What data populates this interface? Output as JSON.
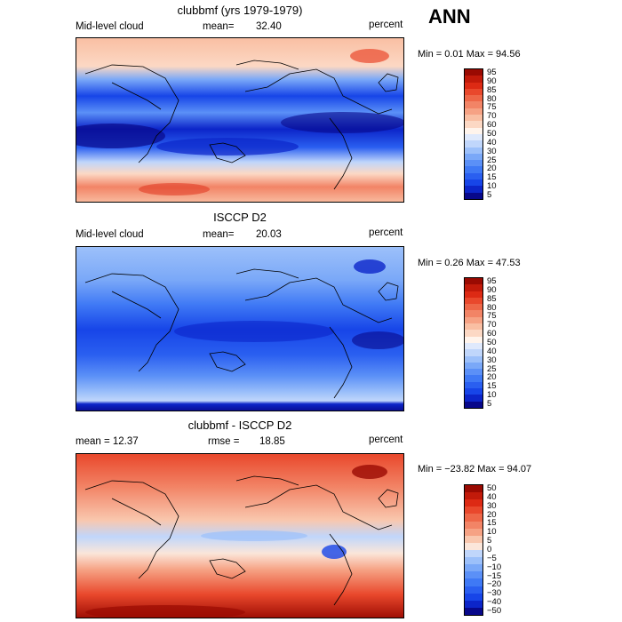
{
  "season": "ANN",
  "colors": {
    "scale_pos": [
      "#08088a",
      "#0c25c9",
      "#1745e8",
      "#2a5ff0",
      "#3f79f5",
      "#5b90f7",
      "#7aa8f8",
      "#9cc0fa",
      "#c0d6fb",
      "#dfe9fc",
      "#fff4ec",
      "#fcd8c4",
      "#f9bfa3",
      "#f6a284",
      "#f28466",
      "#ee6748",
      "#e9482c",
      "#dd2a14",
      "#c21a0a",
      "#9a0a02"
    ],
    "scale_diff": [
      "#08088a",
      "#0c25c9",
      "#1745e8",
      "#2a5ff0",
      "#3f79f5",
      "#5b90f7",
      "#7aa8f8",
      "#9cc0fa",
      "#c0d6fb",
      "#fbe6da",
      "#f9c7ae",
      "#f6a284",
      "#f28466",
      "#ee6748",
      "#e9482c",
      "#dd2a14",
      "#c21a0a",
      "#9a0a02"
    ]
  },
  "panels": [
    {
      "title": "clubbmf (yrs 1979-1979)",
      "left_label": "Mid-level cloud",
      "stat_label": "mean=",
      "stat_value": "32.40",
      "unit": "percent",
      "minmax": "Min =    0.01 Max =   94.56",
      "colorbar_ticks": [
        "95",
        "90",
        "85",
        "80",
        "75",
        "70",
        "60",
        "50",
        "40",
        "30",
        "25",
        "20",
        "15",
        "10",
        "5"
      ]
    },
    {
      "title": "ISCCP D2",
      "left_label": "Mid-level cloud",
      "stat_label": "mean=",
      "stat_value": "20.03",
      "unit": "percent",
      "minmax": "Min =    0.26 Max =   47.53",
      "colorbar_ticks": [
        "95",
        "90",
        "85",
        "80",
        "75",
        "70",
        "60",
        "50",
        "40",
        "30",
        "25",
        "20",
        "15",
        "10",
        "5"
      ]
    },
    {
      "title": "clubbmf - ISCCP D2",
      "left_label": "mean =   12.37",
      "stat_label": "rmse =",
      "stat_value": "18.85",
      "unit": "percent",
      "minmax": "Min = −23.82 Max =   94.07",
      "colorbar_ticks": [
        "50",
        "40",
        "30",
        "20",
        "15",
        "10",
        "5",
        "0",
        "−5",
        "−10",
        "−15",
        "−20",
        "−30",
        "−40",
        "−50"
      ]
    }
  ],
  "chart_data": [
    {
      "type": "heatmap",
      "title": "clubbmf (yrs 1979-1979)",
      "variable": "Mid-level cloud",
      "units": "percent",
      "mean": 32.4,
      "min": 0.01,
      "max": 94.56,
      "levels": [
        5,
        10,
        15,
        20,
        25,
        30,
        40,
        50,
        60,
        70,
        75,
        80,
        85,
        90,
        95
      ],
      "lat_band_values": [
        {
          "lat": 80,
          "value": 65
        },
        {
          "lat": 60,
          "value": 55
        },
        {
          "lat": 40,
          "value": 20
        },
        {
          "lat": 20,
          "value": 10
        },
        {
          "lat": 0,
          "value": 15
        },
        {
          "lat": -20,
          "value": 5
        },
        {
          "lat": -40,
          "value": 40
        },
        {
          "lat": -60,
          "value": 70
        },
        {
          "lat": -80,
          "value": 60
        }
      ]
    },
    {
      "type": "heatmap",
      "title": "ISCCP D2",
      "variable": "Mid-level cloud",
      "units": "percent",
      "mean": 20.03,
      "min": 0.26,
      "max": 47.53,
      "levels": [
        5,
        10,
        15,
        20,
        25,
        30,
        40,
        50,
        60,
        70,
        75,
        80,
        85,
        90,
        95
      ],
      "lat_band_values": [
        {
          "lat": 80,
          "value": 30
        },
        {
          "lat": 60,
          "value": 28
        },
        {
          "lat": 40,
          "value": 22
        },
        {
          "lat": 20,
          "value": 15
        },
        {
          "lat": 0,
          "value": 20
        },
        {
          "lat": -20,
          "value": 12
        },
        {
          "lat": -40,
          "value": 20
        },
        {
          "lat": -60,
          "value": 30
        },
        {
          "lat": -80,
          "value": 5
        }
      ]
    },
    {
      "type": "heatmap",
      "title": "clubbmf - ISCCP D2",
      "variable": "Mid-level cloud",
      "units": "percent",
      "mean": 12.37,
      "rmse": 18.85,
      "min": -23.82,
      "max": 94.07,
      "levels": [
        -50,
        -40,
        -30,
        -20,
        -15,
        -10,
        -5,
        0,
        5,
        10,
        15,
        20,
        30,
        40,
        50
      ],
      "lat_band_values": [
        {
          "lat": 80,
          "value": 35
        },
        {
          "lat": 60,
          "value": 30
        },
        {
          "lat": 40,
          "value": 15
        },
        {
          "lat": 20,
          "value": 5
        },
        {
          "lat": 0,
          "value": -5
        },
        {
          "lat": -20,
          "value": 5
        },
        {
          "lat": -40,
          "value": 15
        },
        {
          "lat": -60,
          "value": 45
        },
        {
          "lat": -80,
          "value": 50
        }
      ]
    }
  ]
}
